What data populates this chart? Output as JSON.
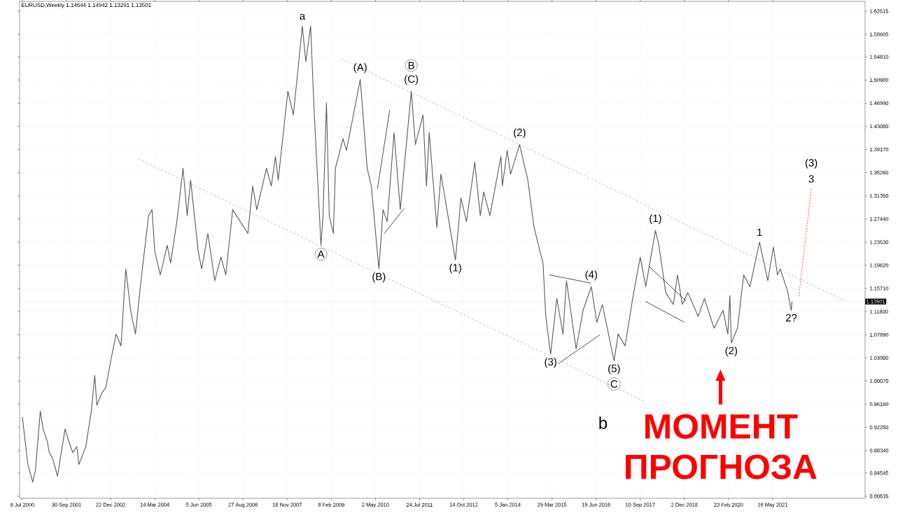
{
  "chart_data": {
    "type": "line",
    "title": "EURUSD,Weekly  1.14644 1.14942 1.13291 1.13501",
    "xlim": [
      "2000-06-11",
      "2023-12-10"
    ],
    "ylim": [
      0.8028,
      1.6417
    ],
    "xticks": [
      {
        "value": "2000-07-09",
        "label": "9 Jul 2000"
      },
      {
        "value": "2001-09-30",
        "label": "30 Sep 2001"
      },
      {
        "value": "2002-12-22",
        "label": "22 Dec 2002"
      },
      {
        "value": "2004-03-14",
        "label": "14 Mar 2004"
      },
      {
        "value": "2005-06-05",
        "label": "5 Jun 2005"
      },
      {
        "value": "2006-08-27",
        "label": "27 Aug 2006"
      },
      {
        "value": "2007-11-18",
        "label": "18 Nov 2007"
      },
      {
        "value": "2009-02-08",
        "label": "8 Feb 2009"
      },
      {
        "value": "2010-05-02",
        "label": "2 May 2010"
      },
      {
        "value": "2011-07-24",
        "label": "24 Jul 2011"
      },
      {
        "value": "2012-10-14",
        "label": "14 Oct 2012"
      },
      {
        "value": "2014-01-05",
        "label": "5 Jan 2014"
      },
      {
        "value": "2015-03-29",
        "label": "29 Mar 2015"
      },
      {
        "value": "2016-06-19",
        "label": "19 Jun 2016"
      },
      {
        "value": "2017-09-10",
        "label": "10 Sep 2017"
      },
      {
        "value": "2018-12-02",
        "label": "2 Dec 2018"
      },
      {
        "value": "2020-02-23",
        "label": "23 Feb 2020"
      },
      {
        "value": "2021-05-16",
        "label": "16 May 2021"
      }
    ],
    "yticks": [
      1.62515,
      1.58605,
      {
        "value": 1.5481,
        "label": "1.54810"
      },
      {
        "value": 1.509,
        "label": "1.50900"
      },
      {
        "value": 1.4699,
        "label": "1.46990"
      },
      {
        "value": 1.4308,
        "label": "1.43080"
      },
      {
        "value": 1.3917,
        "label": "1.39170"
      },
      {
        "value": 1.3526,
        "label": "1.35260"
      },
      {
        "value": 1.3135,
        "label": "1.31350"
      },
      {
        "value": 1.2744,
        "label": "1.27440"
      },
      {
        "value": 1.2353,
        "label": "1.23530"
      },
      {
        "value": 1.1962,
        "label": "1.19620"
      },
      {
        "value": 1.1571,
        "label": "1.15710"
      },
      {
        "value": 1.118,
        "label": "1.11800"
      },
      {
        "value": 1.0789,
        "label": "1.07890"
      },
      {
        "value": 1.0398,
        "label": "1.03980"
      },
      {
        "value": 1.0007,
        "label": "1.00070"
      },
      {
        "value": 0.9616,
        "label": "0.96160"
      },
      {
        "value": 0.9225,
        "label": "0.92250"
      },
      {
        "value": 0.8834,
        "label": "0.88340"
      },
      0.84545,
      0.80635
    ],
    "grid": true,
    "ref_lines": [
      {
        "axis": "y",
        "value": 1.13501,
        "label": "1.13501",
        "color": "#d8d8d8"
      }
    ],
    "series": [
      {
        "color": "#5a5a5a",
        "x": [
          "2000-07-09",
          "2000-08-06",
          "2000-09-03",
          "2000-10-22",
          "2000-11-19",
          "2001-01-07",
          "2001-02-04",
          "2001-03-18",
          "2001-04-08",
          "2001-05-13",
          "2001-07-01",
          "2001-07-29",
          "2001-09-16",
          "2001-10-21",
          "2001-12-02",
          "2002-01-13",
          "2002-02-03",
          "2002-04-14",
          "2002-06-09",
          "2002-07-14",
          "2002-08-04",
          "2002-09-22",
          "2002-11-03",
          "2002-12-29",
          "2003-02-16",
          "2003-04-06",
          "2003-05-25",
          "2003-07-13",
          "2003-08-31",
          "2003-10-26",
          "2004-01-11",
          "2004-02-15",
          "2004-03-14",
          "2004-05-09",
          "2004-07-18",
          "2004-08-22",
          "2004-10-24",
          "2004-12-26",
          "2005-02-06",
          "2005-03-13",
          "2005-05-29",
          "2005-07-03",
          "2005-09-04",
          "2005-11-13",
          "2006-01-15",
          "2006-03-05",
          "2006-05-14",
          "2006-07-30",
          "2006-10-15",
          "2006-12-03",
          "2007-01-14",
          "2007-04-22",
          "2007-06-10",
          "2007-07-22",
          "2007-08-19",
          "2007-11-25",
          "2008-01-20",
          "2008-04-20",
          "2008-05-25",
          "2008-07-13",
          "2008-08-17",
          "2008-10-26",
          "2008-11-16",
          "2008-12-21",
          "2009-01-18",
          "2009-03-01",
          "2009-03-22",
          "2009-06-07",
          "2009-07-12",
          "2009-11-29",
          "2010-02-07",
          "2010-03-21",
          "2010-06-06",
          "2010-07-18",
          "2010-08-29",
          "2010-11-07",
          "2011-01-09",
          "2011-05-01",
          "2011-06-12",
          "2011-08-28",
          "2011-10-02",
          "2011-10-30",
          "2012-01-15",
          "2012-02-26",
          "2012-07-22",
          "2012-09-16",
          "2012-11-11",
          "2013-02-03",
          "2013-03-31",
          "2013-05-05",
          "2013-07-07",
          "2013-10-27",
          "2013-11-10",
          "2013-12-29",
          "2014-02-02",
          "2014-05-04",
          "2014-07-27",
          "2014-09-28",
          "2014-12-28",
          "2015-01-25",
          "2015-03-15",
          "2015-05-17",
          "2015-07-19",
          "2015-08-23",
          "2015-11-29",
          "2016-02-07",
          "2016-05-01",
          "2016-06-26",
          "2016-08-21",
          "2016-12-18",
          "2017-01-29",
          "2017-04-09",
          "2017-06-25",
          "2017-09-10",
          "2017-11-05",
          "2018-02-11",
          "2018-03-18",
          "2018-05-27",
          "2018-08-12",
          "2018-09-23",
          "2018-11-11",
          "2019-01-06",
          "2019-04-21",
          "2019-06-23",
          "2019-09-29",
          "2019-12-29",
          "2020-02-16",
          "2020-03-08",
          "2020-03-22",
          "2020-05-24",
          "2020-07-26",
          "2020-09-27",
          "2021-01-03",
          "2021-03-28",
          "2021-05-23",
          "2021-07-04",
          "2021-08-01",
          "2021-10-10",
          "2021-11-21",
          "2021-11-28"
        ],
        "values": [
          0.94,
          0.9,
          0.86,
          0.83,
          0.85,
          0.95,
          0.92,
          0.9,
          0.88,
          0.87,
          0.84,
          0.87,
          0.92,
          0.9,
          0.88,
          0.89,
          0.86,
          0.89,
          0.95,
          1.01,
          0.96,
          0.98,
          0.99,
          1.04,
          1.08,
          1.06,
          1.19,
          1.12,
          1.08,
          1.17,
          1.28,
          1.29,
          1.22,
          1.18,
          1.23,
          1.2,
          1.27,
          1.36,
          1.28,
          1.34,
          1.22,
          1.19,
          1.25,
          1.17,
          1.21,
          1.18,
          1.29,
          1.27,
          1.25,
          1.33,
          1.29,
          1.36,
          1.33,
          1.38,
          1.34,
          1.49,
          1.45,
          1.6,
          1.54,
          1.6,
          1.46,
          1.23,
          1.28,
          1.47,
          1.28,
          1.25,
          1.36,
          1.41,
          1.39,
          1.51,
          1.36,
          1.33,
          1.19,
          1.29,
          1.27,
          1.42,
          1.29,
          1.49,
          1.4,
          1.45,
          1.33,
          1.42,
          1.26,
          1.35,
          1.205,
          1.31,
          1.27,
          1.37,
          1.28,
          1.32,
          1.28,
          1.38,
          1.33,
          1.39,
          1.35,
          1.4,
          1.34,
          1.26,
          1.2,
          1.11,
          1.046,
          1.14,
          1.08,
          1.17,
          1.055,
          1.12,
          1.16,
          1.1,
          1.13,
          1.035,
          1.08,
          1.06,
          1.14,
          1.21,
          1.16,
          1.255,
          1.23,
          1.15,
          1.13,
          1.18,
          1.13,
          1.15,
          1.11,
          1.14,
          1.09,
          1.12,
          1.08,
          1.145,
          1.065,
          1.09,
          1.18,
          1.16,
          1.235,
          1.17,
          1.227,
          1.18,
          1.19,
          1.155,
          1.12,
          1.135
        ]
      },
      {
        "color": "#a0a0a0",
        "line_style": "dashed",
        "x": [
          "2009-05-20",
          "2023-05-21"
        ],
        "values": [
          1.545,
          1.136
        ]
      },
      {
        "color": "#a0a0a0",
        "line_style": "dashed",
        "x": [
          "2003-09-28",
          "2017-10-15"
        ],
        "values": [
          1.376,
          0.967
        ]
      },
      {
        "color": "#000000",
        "x": [
          "2010-05-22",
          "2010-09-24"
        ],
        "values": [
          1.325,
          1.458
        ]
      },
      {
        "color": "#000000",
        "x": [
          "2010-07-30",
          "2011-02-16"
        ],
        "values": [
          1.25,
          1.292
        ]
      },
      {
        "color": "#000000",
        "x": [
          "2015-03-03",
          "2016-04-29"
        ],
        "values": [
          1.18,
          1.166
        ]
      },
      {
        "color": "#000000",
        "x": [
          "2015-06-01",
          "2016-07-28"
        ],
        "values": [
          1.03,
          1.079
        ]
      },
      {
        "color": "#000000",
        "x": [
          "2017-12-10",
          "2018-12-20"
        ],
        "values": [
          1.194,
          1.136
        ]
      },
      {
        "color": "#000000",
        "x": [
          "2017-11-05",
          "2018-12-01"
        ],
        "values": [
          1.135,
          1.1
        ]
      },
      {
        "color": "#ff0000",
        "line_style": "dotted",
        "x": [
          "2022-02-06",
          "2022-06-12"
        ],
        "values": [
          1.144,
          1.325
        ]
      }
    ],
    "annotations": [
      {
        "text": "a",
        "x": "2008-04-20",
        "y": 1.6
      },
      {
        "text": "A",
        "x": "2008-10-26",
        "y": 1.23
      },
      {
        "text": "(A)",
        "x": "2009-11-29",
        "y": 1.51
      },
      {
        "text": "B",
        "x": "2011-05-01",
        "y": 1.49
      },
      {
        "text": "(C)",
        "x": "2011-05-01",
        "y": 1.49
      },
      {
        "text": "(B)",
        "x": "2010-06-06",
        "y": 1.19
      },
      {
        "text": "(1)",
        "x": "2012-07-22",
        "y": 1.205
      },
      {
        "text": "(2)",
        "x": "2014-05-04",
        "y": 1.4
      },
      {
        "text": "(3)",
        "x": "2015-03-15",
        "y": 1.046
      },
      {
        "text": "(4)",
        "x": "2016-05-01",
        "y": 1.16
      },
      {
        "text": "(5)",
        "x": "2016-12-18",
        "y": 1.035
      },
      {
        "text": "C",
        "x": "2016-12-18",
        "y": 1.035
      },
      "b",
      {
        "text": "(1)",
        "x": "2018-02-11",
        "y": 1.255
      },
      {
        "text": "(2)",
        "x": "2020-03-22",
        "y": 1.065
      },
      {
        "text": "1",
        "x": "2021-01-03",
        "y": 1.235
      },
      {
        "text": "2?",
        "x": "2021-11-21",
        "y": 1.12
      },
      {
        "text": "(3)",
        "x": "2022-06-12",
        "y": 1.325
      },
      {
        "text": "3",
        "x": "2022-06-12",
        "y": 1.325
      },
      "МОМЕНТ ПРОГНОЗА"
    ]
  }
}
